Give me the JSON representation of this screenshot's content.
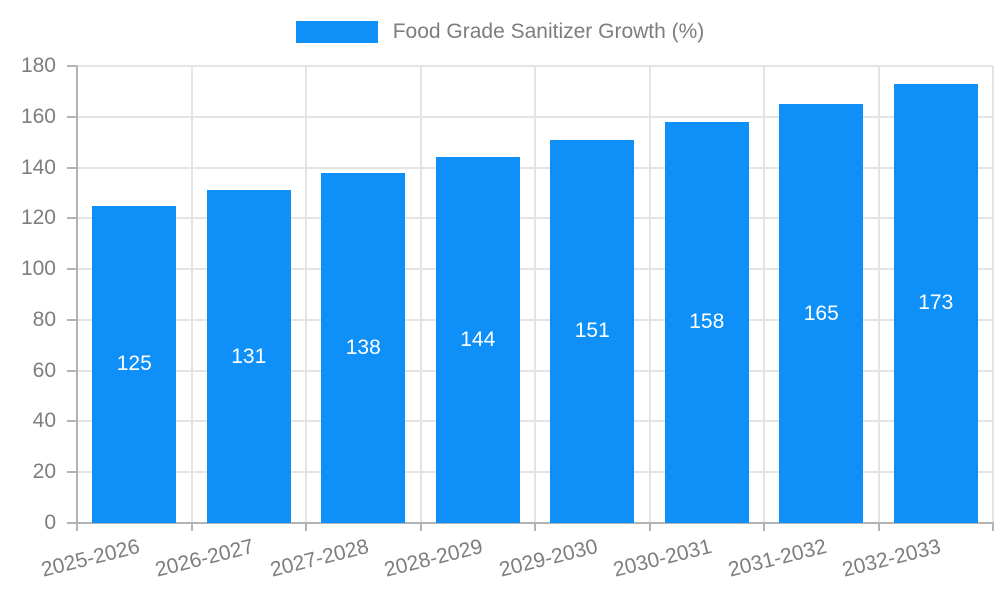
{
  "chart_data": {
    "type": "bar",
    "title": "Food Grade Sanitizer Growth (%)",
    "categories": [
      "2025-2026",
      "2026-2027",
      "2027-2028",
      "2028-2029",
      "2029-2030",
      "2030-2031",
      "2031-2032",
      "2032-2033"
    ],
    "values": [
      125,
      131,
      138,
      144,
      151,
      158,
      165,
      173
    ],
    "xlabel": "",
    "ylabel": "",
    "ylim": [
      0,
      180
    ],
    "ytick_step": 20,
    "yticks": [
      0,
      20,
      40,
      60,
      80,
      100,
      120,
      140,
      160,
      180
    ],
    "grid": true,
    "legend_position": "top-center",
    "value_labels": "centered-inside-bars",
    "colors": {
      "bar": "#0E90F8",
      "value_label": "#ffffff",
      "axis_text": "#7e7e7e",
      "legend_text": "#7e7e7e",
      "gridline": "#e4e4e4",
      "axis_line": "#b3b3b3"
    }
  }
}
